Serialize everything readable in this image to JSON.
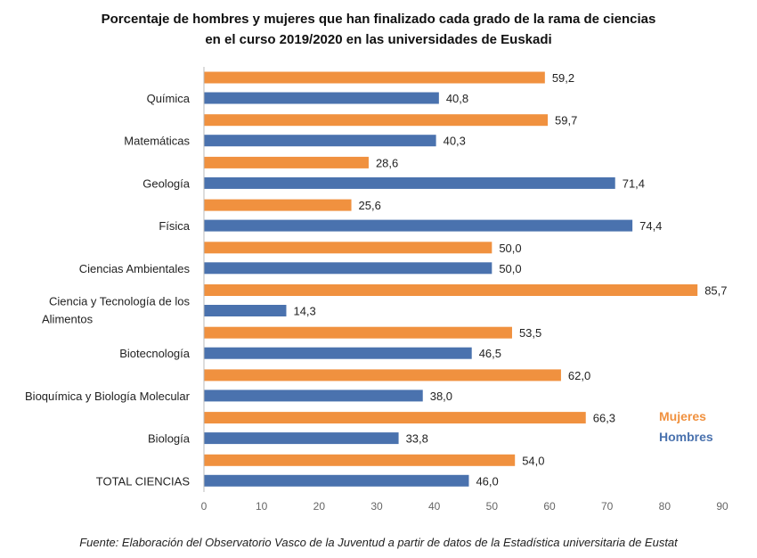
{
  "chart_data": {
    "type": "bar",
    "orientation": "horizontal",
    "title": [
      "Porcentaje de hombres y mujeres que han finalizado cada grado de la rama de ciencias",
      "en el curso 2019/2020 en las universidades de Euskadi"
    ],
    "categories": [
      "Química",
      "Matemáticas",
      "Geología",
      "Física",
      "Ciencias Ambientales",
      "Ciencia y Tecnología de los Alimentos",
      "Biotecnología",
      "Bioquímica y Biología Molecular",
      "Biología",
      "TOTAL CIENCIAS"
    ],
    "series": [
      {
        "name": "Mujeres",
        "color": "#F0913F",
        "values": [
          59.2,
          59.7,
          28.6,
          25.6,
          50.0,
          85.7,
          53.5,
          62.0,
          66.3,
          54.0
        ]
      },
      {
        "name": "Hombres",
        "color": "#4A72AE",
        "values": [
          40.8,
          40.3,
          71.4,
          74.4,
          50.0,
          14.3,
          46.5,
          38.0,
          33.8,
          46.0
        ]
      }
    ],
    "xlim": [
      0,
      90
    ],
    "xticks": [
      0,
      10,
      20,
      30,
      40,
      50,
      60,
      70,
      80,
      90
    ],
    "grid": false,
    "legend": "right",
    "data_labels": true
  },
  "footer": "Fuente: Elaboración del Observatorio Vasco de la Juventud a partir de datos de la Estadística universitaria de Eustat"
}
